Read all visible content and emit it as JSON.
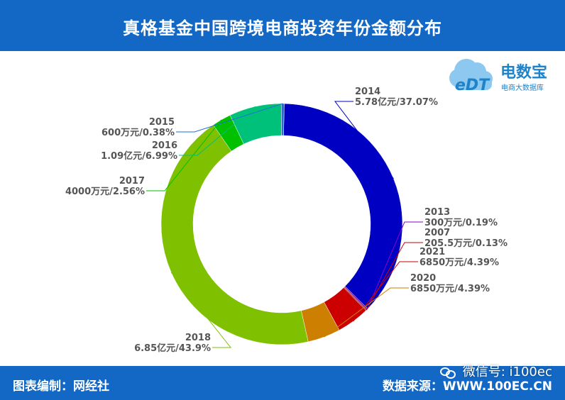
{
  "page": {
    "title": "真格基金中国跨境电商投资年份金额分布",
    "footer_left": "图表编制：网经社",
    "footer_right": "数据来源：WWW.100EC.CN",
    "watermark": "微信号: i100ec",
    "logo": {
      "mark_text": "eDT",
      "title": "电数宝",
      "subtitle": "电商大数据库"
    }
  },
  "chart_data": {
    "type": "pie",
    "donut": true,
    "colors": {
      "2014": "#0000c2",
      "2013": "#8a00c8",
      "2007": "#cc0000",
      "2021": "#cc0000",
      "2020": "#cc7f00",
      "2018": "#7fc000",
      "2017": "#00c000",
      "2016": "#00c17a",
      "2015": "#1e70d8"
    },
    "slices": [
      {
        "year": "2014",
        "label": "5.78亿元/37.07%",
        "value": 37.07,
        "color": "#0000c2"
      },
      {
        "year": "2013",
        "label": "300万元/0.19%",
        "value": 0.19,
        "color": "#8a00c8"
      },
      {
        "year": "2007",
        "label": "205.5万元/0.13%",
        "value": 0.13,
        "color": "#cc0000"
      },
      {
        "year": "2021",
        "label": "6850万元/4.39%",
        "value": 4.39,
        "color": "#cc0000"
      },
      {
        "year": "2020",
        "label": "6850万元/4.39%",
        "value": 4.39,
        "color": "#cc7f00"
      },
      {
        "year": "2018",
        "label": "6.85亿元/43.9%",
        "value": 43.9,
        "color": "#7fc000"
      },
      {
        "year": "2017",
        "label": "4000万元/2.56%",
        "value": 2.56,
        "color": "#00c000"
      },
      {
        "year": "2016",
        "label": "1.09亿元/6.99%",
        "value": 6.99,
        "color": "#00c17a"
      },
      {
        "year": "2015",
        "label": "600万元/0.38%",
        "value": 0.38,
        "color": "#1e70d8"
      }
    ]
  }
}
